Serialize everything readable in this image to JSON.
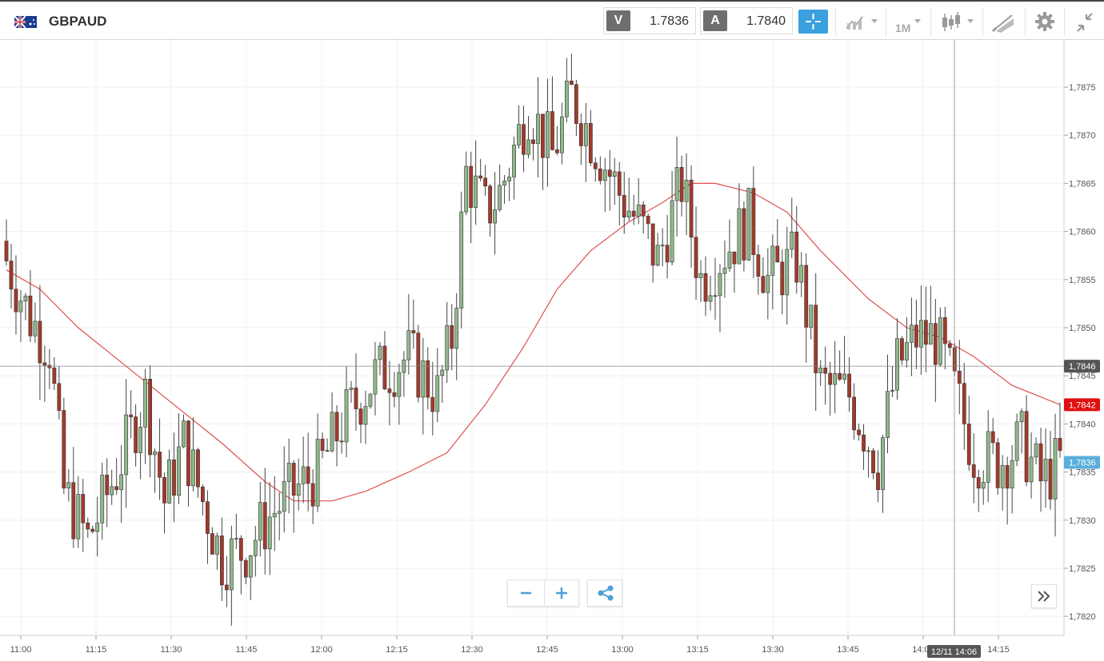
{
  "header": {
    "symbol": "GBPAUD",
    "sell_label": "V",
    "sell_price": "1.7836",
    "buy_label": "A",
    "buy_price": "1.7840",
    "timeframe": "1M",
    "icons": [
      "crosshair-icon",
      "chart-type-icon",
      "timeframe-selector",
      "candlestick-icon",
      "drawing-tools-icon",
      "gear-icon",
      "collapse-icon"
    ]
  },
  "chart_data": {
    "type": "candlestick",
    "symbol": "GBPAUD",
    "ylim": [
      1.7817,
      1.7882
    ],
    "y_ticks": [
      "1,7875",
      "1,7870",
      "1,7865",
      "1,7860",
      "1,7855",
      "1,7850",
      "1,7845",
      "1,7840",
      "1,7835",
      "1,7830",
      "1,7825",
      "1,7820"
    ],
    "x_ticks": [
      "11:00",
      "11:15",
      "11:30",
      "11:45",
      "12:00",
      "12:15",
      "12:30",
      "12:45",
      "13:00",
      "13:15",
      "13:30",
      "13:45",
      "14:00",
      "14:15"
    ],
    "crosshair": {
      "time_label": "12/11 14:06",
      "price_label": "1,7846",
      "price": 1.7846
    },
    "last_price_label": {
      "text": "1,7842",
      "price": 1.7842,
      "color": "#e01010"
    },
    "current_price_label": {
      "text": "1,7836",
      "price": 1.7836,
      "color": "#5aaedc"
    },
    "up_color": "#8fb88a",
    "down_color": "#a33a2a",
    "ma_color": "#e05050",
    "close_path": [
      {
        "bar": 0,
        "price": 1.7857
      },
      {
        "bar": 5,
        "price": 1.7851
      },
      {
        "bar": 9,
        "price": 1.7848
      },
      {
        "bar": 12,
        "price": 1.7833
      },
      {
        "bar": 17,
        "price": 1.7828
      },
      {
        "bar": 23,
        "price": 1.7835
      },
      {
        "bar": 29,
        "price": 1.7843
      },
      {
        "bar": 33,
        "price": 1.7832
      },
      {
        "bar": 37,
        "price": 1.7838
      },
      {
        "bar": 45,
        "price": 1.7826
      },
      {
        "bar": 50,
        "price": 1.7827
      },
      {
        "bar": 56,
        "price": 1.7831
      },
      {
        "bar": 60,
        "price": 1.7833
      },
      {
        "bar": 65,
        "price": 1.7835
      },
      {
        "bar": 70,
        "price": 1.784
      },
      {
        "bar": 77,
        "price": 1.7845
      },
      {
        "bar": 84,
        "price": 1.7847
      },
      {
        "bar": 90,
        "price": 1.7843
      },
      {
        "bar": 93,
        "price": 1.7849
      },
      {
        "bar": 96,
        "price": 1.7866
      },
      {
        "bar": 100,
        "price": 1.7862
      },
      {
        "bar": 103,
        "price": 1.7864
      },
      {
        "bar": 109,
        "price": 1.7873
      },
      {
        "bar": 114,
        "price": 1.7868
      },
      {
        "bar": 118,
        "price": 1.7874
      },
      {
        "bar": 124,
        "price": 1.7868
      },
      {
        "bar": 128,
        "price": 1.7864
      },
      {
        "bar": 133,
        "price": 1.786
      },
      {
        "bar": 136,
        "price": 1.7857
      },
      {
        "bar": 141,
        "price": 1.7865
      },
      {
        "bar": 145,
        "price": 1.7855
      },
      {
        "bar": 150,
        "price": 1.7858
      },
      {
        "bar": 155,
        "price": 1.7861
      },
      {
        "bar": 159,
        "price": 1.7855
      },
      {
        "bar": 165,
        "price": 1.7857
      },
      {
        "bar": 170,
        "price": 1.7844
      },
      {
        "bar": 176,
        "price": 1.7843
      },
      {
        "bar": 182,
        "price": 1.7836
      },
      {
        "bar": 186,
        "price": 1.7846
      },
      {
        "bar": 190,
        "price": 1.7849
      },
      {
        "bar": 194,
        "price": 1.7849
      },
      {
        "bar": 197,
        "price": 1.7845
      },
      {
        "bar": 202,
        "price": 1.7837
      },
      {
        "bar": 207,
        "price": 1.7836
      },
      {
        "bar": 212,
        "price": 1.7838
      },
      {
        "bar": 216,
        "price": 1.7834
      },
      {
        "bar": 220,
        "price": 1.7836
      }
    ],
    "moving_average": [
      {
        "bar": 0,
        "price": 1.7856
      },
      {
        "bar": 7,
        "price": 1.7854
      },
      {
        "bar": 15,
        "price": 1.785
      },
      {
        "bar": 25,
        "price": 1.7846
      },
      {
        "bar": 35,
        "price": 1.7842
      },
      {
        "bar": 45,
        "price": 1.7838
      },
      {
        "bar": 54,
        "price": 1.7834
      },
      {
        "bar": 60,
        "price": 1.7832
      },
      {
        "bar": 68,
        "price": 1.7832
      },
      {
        "bar": 75,
        "price": 1.7833
      },
      {
        "bar": 84,
        "price": 1.7835
      },
      {
        "bar": 92,
        "price": 1.7837
      },
      {
        "bar": 100,
        "price": 1.7842
      },
      {
        "bar": 108,
        "price": 1.7848
      },
      {
        "bar": 115,
        "price": 1.7854
      },
      {
        "bar": 122,
        "price": 1.7858
      },
      {
        "bar": 130,
        "price": 1.7861
      },
      {
        "bar": 137,
        "price": 1.7863
      },
      {
        "bar": 143,
        "price": 1.7865
      },
      {
        "bar": 148,
        "price": 1.7865
      },
      {
        "bar": 156,
        "price": 1.7864
      },
      {
        "bar": 163,
        "price": 1.7862
      },
      {
        "bar": 170,
        "price": 1.7858
      },
      {
        "bar": 180,
        "price": 1.7853
      },
      {
        "bar": 188,
        "price": 1.785
      },
      {
        "bar": 195,
        "price": 1.7849
      },
      {
        "bar": 202,
        "price": 1.7847
      },
      {
        "bar": 210,
        "price": 1.7844
      },
      {
        "bar": 220,
        "price": 1.7842
      }
    ]
  }
}
